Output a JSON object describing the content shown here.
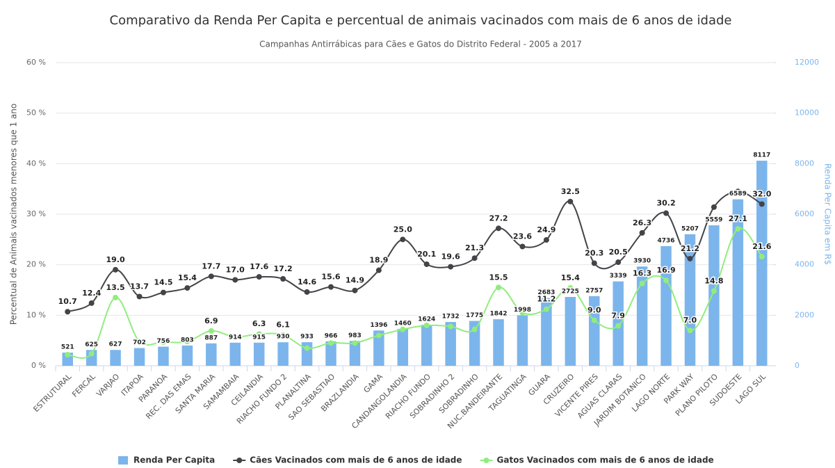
{
  "chart_data": {
    "type": "combo",
    "title": "Comparativo da Renda Per Capita e percentual de animais vacinados com mais de 6 anos de idade",
    "subtitle": "Campanhas Antirrábicas para Cães e Gatos do Distrito Federal - 2005 a 2017",
    "y_label": "Percentual de Animais vacinados menores que 1 ano",
    "y2_label": "Renda Per Capita em R$",
    "categories": [
      "ESTRUTURAL",
      "FERCAL",
      "VARJAO",
      "ITAPOA",
      "PARANOA",
      "REC. DAS EMAS",
      "SANTA MARIA",
      "SAMAMBAIA",
      "CEILANDIA",
      "RIACHO FUNDO 2",
      "PLANALTINA",
      "SAO SEBASTIAO",
      "BRAZLANDIA",
      "GAMA",
      "CANDANGOLANDIA",
      "RIACHO FUNDO",
      "SOBRADINHO 2",
      "SOBRADINHO",
      "NUC.BANDEIRANTE",
      "TAGUATINGA",
      "GUARA",
      "CRUZEIRO",
      "VICENTE PIRES",
      "AGUAS CLARAS",
      "JARDIM BOTANICO",
      "LAGO NORTE",
      "PARK WAY",
      "PLANO PILOTO",
      "SUDOESTE",
      "LAGO SUL"
    ],
    "ylim": [
      0,
      60
    ],
    "yticks": [
      {
        "value": 0,
        "label": "0 %"
      },
      {
        "value": 10,
        "label": "10 %"
      },
      {
        "value": 20,
        "label": "20 %"
      },
      {
        "value": 30,
        "label": "30 %"
      },
      {
        "value": 40,
        "label": "40 %"
      },
      {
        "value": 50,
        "label": "50 %"
      },
      {
        "value": 60,
        "label": "60 %"
      }
    ],
    "y2lim": [
      0,
      12000
    ],
    "y2ticks": [
      0,
      2000,
      4000,
      6000,
      8000,
      10000,
      12000
    ],
    "grid": true,
    "legend": "bottom",
    "series": [
      {
        "name": "Renda Per Capita",
        "type": "column",
        "axis": "y2",
        "color": "#7cb5ec",
        "values": [
          521,
          625,
          627,
          702,
          756,
          803,
          887,
          914,
          915,
          930,
          933,
          966,
          983,
          1396,
          1460,
          1624,
          1732,
          1775,
          1842,
          1998,
          2683,
          2725,
          2757,
          3339,
          3930,
          4736,
          5207,
          5559,
          6589,
          8117
        ]
      },
      {
        "name": "Cães Vacinados com mais de 6 anos de idade",
        "type": "spline",
        "color": "#434348",
        "values": [
          10.7,
          12.4,
          19.0,
          13.7,
          14.5,
          15.4,
          17.7,
          17.0,
          17.6,
          17.2,
          14.6,
          15.6,
          14.9,
          18.9,
          25.0,
          20.1,
          19.6,
          21.3,
          27.2,
          23.6,
          24.9,
          32.5,
          20.3,
          20.5,
          26.3,
          30.2,
          21.2,
          31.4,
          34.5,
          32.0
        ],
        "value_labels": [
          "10.7",
          "12.4",
          "19.0",
          "13.7",
          "14.5",
          "15.4",
          "17.7",
          "17.0",
          "17.6",
          "17.2",
          "14.6",
          "15.6",
          "14.9",
          "18.9",
          "25.0",
          "20.1",
          "19.6",
          "21.3",
          "27.2",
          "23.6",
          "24.9",
          "32.5",
          "20.3",
          "20.5",
          "26.3",
          "30.2",
          "21.2",
          null,
          null,
          "32.0"
        ]
      },
      {
        "name": "Gatos Vacinados com mais de 6 anos de idade",
        "type": "spline",
        "color": "#90ed7d",
        "values": [
          2.2,
          2.4,
          13.5,
          4.8,
          4.7,
          4.8,
          6.9,
          5.7,
          6.3,
          6.1,
          3.5,
          4.5,
          4.5,
          6.0,
          7.2,
          8.0,
          7.8,
          7.2,
          15.5,
          10.5,
          11.2,
          15.4,
          9.0,
          7.9,
          16.3,
          16.9,
          7.0,
          14.8,
          27.1,
          21.6
        ],
        "value_labels": [
          null,
          null,
          "13.5",
          null,
          null,
          null,
          "6.9",
          null,
          "6.3",
          "6.1",
          null,
          null,
          null,
          null,
          null,
          null,
          null,
          null,
          "15.5",
          null,
          "11.2",
          "15.4",
          "9.0",
          "7.9",
          "16.3",
          "16.9",
          "7.0",
          "14.8",
          "27.1",
          "21.6"
        ]
      }
    ]
  }
}
